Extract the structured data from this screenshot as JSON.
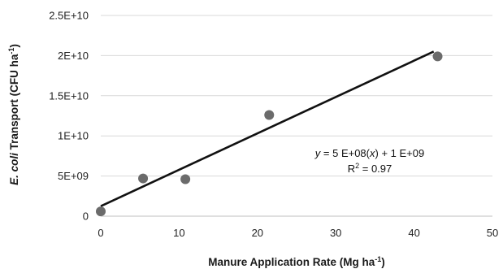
{
  "chart_data": {
    "type": "scatter",
    "x_axis": {
      "title_main": "Manure Application Rate (Mg ha",
      "title_sup": "-1",
      "title_tail": ")",
      "min": 0,
      "max": 50,
      "ticks": [
        0,
        10,
        20,
        30,
        40,
        50
      ],
      "tick_labels": [
        "0",
        "10",
        "20",
        "30",
        "40",
        "50"
      ]
    },
    "y_axis": {
      "title_italic": "E. coli",
      "title_main": " Transport (CFU ha",
      "title_sup": "-1",
      "title_tail": ")",
      "min": 0,
      "max": 25000000000,
      "ticks": [
        0,
        5000000000,
        10000000000,
        15000000000,
        20000000000,
        25000000000
      ],
      "tick_labels": [
        "0",
        "5E+09",
        "1E+10",
        "1.5E+10",
        "2E+10",
        "2.5E+10"
      ]
    },
    "points": [
      {
        "x": 0,
        "y": 600000000
      },
      {
        "x": 5.4,
        "y": 4700000000
      },
      {
        "x": 10.8,
        "y": 4600000000
      },
      {
        "x": 21.5,
        "y": 12600000000
      },
      {
        "x": 43,
        "y": 19900000000
      }
    ],
    "trendline": {
      "x_start": 0,
      "x_end": 42.5,
      "slope": 453000000,
      "intercept": 1250000000
    },
    "equation": {
      "y_var": "y",
      "eq_mid": " = 5 E+08(",
      "x_var": "x",
      "eq_tail": ") + 1 E+09",
      "r2_label": "R",
      "r2_sup": "2",
      "r2_value": " = 0.97"
    },
    "grid": "horizontal",
    "legend": "none",
    "colors": {
      "points": "#6b6b6b",
      "line": "#111111",
      "grid": "#d9d9d9",
      "axis": "#bfbfbf"
    }
  }
}
